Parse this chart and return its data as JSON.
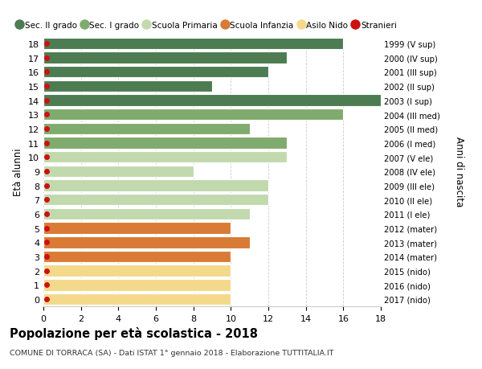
{
  "ages": [
    18,
    17,
    16,
    15,
    14,
    13,
    12,
    11,
    10,
    9,
    8,
    7,
    6,
    5,
    4,
    3,
    2,
    1,
    0
  ],
  "values": [
    16,
    13,
    12,
    9,
    18,
    16,
    11,
    13,
    13,
    8,
    12,
    12,
    11,
    10,
    11,
    10,
    10,
    10,
    10
  ],
  "right_labels": [
    "1999 (V sup)",
    "2000 (IV sup)",
    "2001 (III sup)",
    "2002 (II sup)",
    "2003 (I sup)",
    "2004 (III med)",
    "2005 (II med)",
    "2006 (I med)",
    "2007 (V ele)",
    "2008 (IV ele)",
    "2009 (III ele)",
    "2010 (II ele)",
    "2011 (I ele)",
    "2012 (mater)",
    "2013 (mater)",
    "2014 (mater)",
    "2015 (nido)",
    "2016 (nido)",
    "2017 (nido)"
  ],
  "bar_colors": [
    "#4d7c52",
    "#4d7c52",
    "#4d7c52",
    "#4d7c52",
    "#4d7c52",
    "#80ab6e",
    "#80ab6e",
    "#80ab6e",
    "#c2d9ae",
    "#c2d9ae",
    "#c2d9ae",
    "#c2d9ae",
    "#c2d9ae",
    "#d97b35",
    "#d97b35",
    "#d97b35",
    "#f5d98b",
    "#f5d98b",
    "#f5d98b"
  ],
  "legend_labels": [
    "Sec. II grado",
    "Sec. I grado",
    "Scuola Primaria",
    "Scuola Infanzia",
    "Asilo Nido",
    "Stranieri"
  ],
  "legend_colors": [
    "#4d7c52",
    "#80ab6e",
    "#c2d9ae",
    "#d97b35",
    "#f5d98b",
    "#cc1111"
  ],
  "ylabel": "Età alunni",
  "right_ylabel": "Anni di nascita",
  "title": "Popolazione per età scolastica - 2018",
  "subtitle": "COMUNE DI TORRACA (SA) - Dati ISTAT 1° gennaio 2018 - Elaborazione TUTTITALIA.IT",
  "xlim": [
    0,
    18
  ],
  "background_color": "#ffffff",
  "grid_color": "#cccccc",
  "stranieri_color": "#cc1111",
  "bar_height": 0.82
}
